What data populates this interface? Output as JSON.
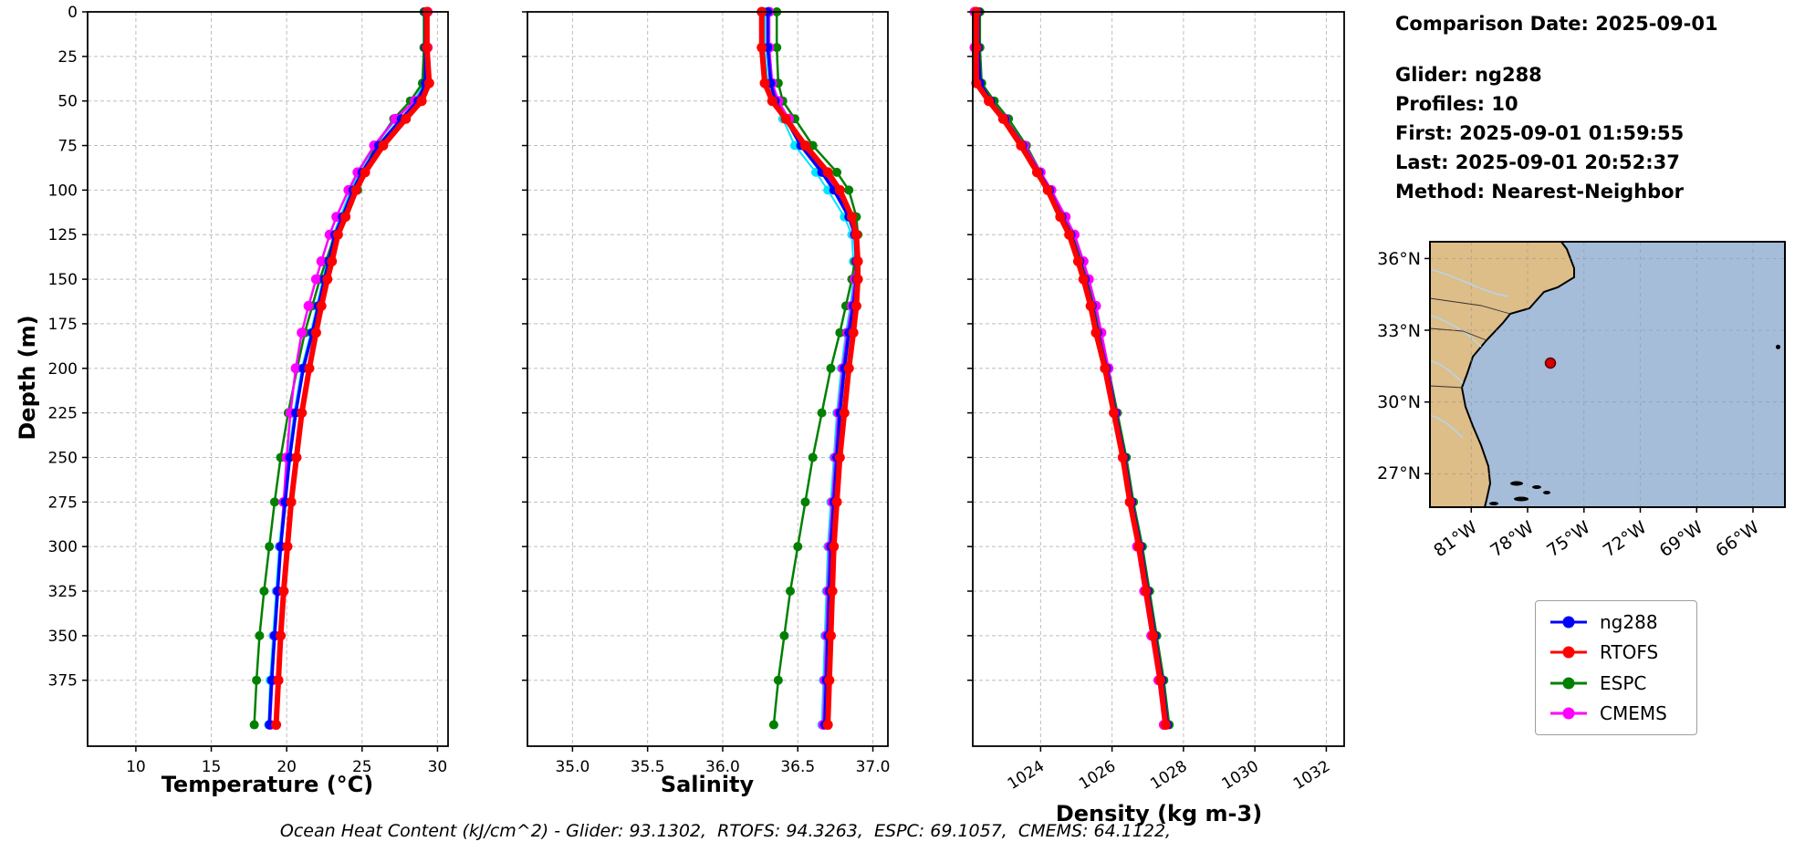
{
  "info_panel": {
    "comparison_date": "Comparison Date: 2025-09-01",
    "glider": "Glider: ng288",
    "profiles": "Profiles: 10",
    "first": "First: 2025-09-01 01:59:55",
    "last": "Last: 2025-09-01 20:52:37",
    "method": "Method: Nearest-Neighbor"
  },
  "footer": {
    "text": "Ocean Heat Content (kJ/cm^2) - Glider: 93.1302,  RTOFS: 94.3263,  ESPC: 69.1057,  CMEMS: 64.1122,"
  },
  "ocean_heat_content": {
    "glider": 93.1302,
    "rtofs": 94.3263,
    "espc": 69.1057,
    "cmems": 64.1122,
    "units": "kJ/cm^2"
  },
  "legend": {
    "entries": [
      {
        "label": "ng288",
        "color": "#0000ff"
      },
      {
        "label": "RTOFS",
        "color": "#ff0000"
      },
      {
        "label": "ESPC",
        "color": "#008000"
      },
      {
        "label": "CMEMS",
        "color": "#ff00ff"
      }
    ]
  },
  "map": {
    "lat_ticks": [
      "36°N",
      "33°N",
      "30°N",
      "27°N"
    ],
    "lon_ticks": [
      "81°W",
      "78°W",
      "75°W",
      "72°W",
      "69°W",
      "66°W"
    ],
    "marker": {
      "color": "#d40000"
    },
    "land_color": "#ddbd88",
    "ocean_color": "#a5bdd9"
  },
  "chart_data": [
    {
      "type": "line",
      "profile": "temperature-depth",
      "xlabel": "Temperature (°C)",
      "ylabel": "Depth (m)",
      "xlim": [
        6.8,
        30.7
      ],
      "ylim": [
        0,
        412
      ],
      "xticks": [
        10,
        15,
        20,
        25,
        30
      ],
      "xtick_labels": [
        "10",
        "15",
        "20",
        "25",
        "30"
      ],
      "yticks": [
        0,
        25,
        50,
        75,
        100,
        125,
        150,
        175,
        200,
        225,
        250,
        275,
        300,
        325,
        350,
        375
      ],
      "show_ytick_labels": true,
      "rotate_xticklabels": false,
      "grid": true,
      "depths": [
        0,
        20,
        40,
        50,
        60,
        75,
        90,
        100,
        115,
        125,
        140,
        150,
        165,
        180,
        200,
        225,
        250,
        275,
        300,
        325,
        350,
        375,
        400
      ],
      "series": [
        {
          "name": "glider-profiles",
          "color": "#00e5ff",
          "lw": 2,
          "ms": 5,
          "values": [
            29.15,
            29.15,
            29.1,
            28.45,
            27.3,
            25.85,
            24.8,
            24.25,
            23.55,
            23.1,
            22.7,
            22.4,
            22.0,
            21.6,
            21.0,
            20.5,
            20.1,
            19.8,
            19.5,
            19.3,
            19.1,
            18.9,
            18.8
          ]
        },
        {
          "name": "ESPC",
          "color": "#008000",
          "lw": 2.5,
          "ms": 5,
          "values": [
            29.1,
            29.1,
            29.0,
            28.2,
            27.1,
            25.9,
            25.1,
            24.7,
            23.8,
            23.2,
            22.6,
            22.2,
            21.7,
            21.2,
            20.7,
            20.1,
            19.6,
            19.2,
            18.85,
            18.5,
            18.2,
            18.0,
            17.85
          ]
        },
        {
          "name": "CMEMS",
          "color": "#ff00ff",
          "lw": 2.5,
          "ms": 5.5,
          "values": [
            29.35,
            29.35,
            29.3,
            28.5,
            27.2,
            25.8,
            24.7,
            24.1,
            23.3,
            22.85,
            22.3,
            21.95,
            21.45,
            21.0,
            20.6,
            20.25,
            20.0,
            19.8,
            19.6,
            19.4,
            19.2,
            19.05,
            18.9
          ]
        },
        {
          "name": "ng288",
          "color": "#0000ff",
          "lw": 3.5,
          "ms": 5,
          "values": [
            29.2,
            29.2,
            29.2,
            28.7,
            27.6,
            26.1,
            25.0,
            24.4,
            23.7,
            23.2,
            22.8,
            22.5,
            22.1,
            21.7,
            21.1,
            20.6,
            20.2,
            19.9,
            19.6,
            19.4,
            19.2,
            19.0,
            18.85
          ]
        },
        {
          "name": "RTOFS",
          "color": "#ff0000",
          "lw": 6,
          "ms": 5.5,
          "values": [
            29.3,
            29.3,
            29.45,
            28.95,
            27.9,
            26.4,
            25.2,
            24.6,
            23.9,
            23.4,
            23.0,
            22.7,
            22.3,
            21.95,
            21.5,
            21.0,
            20.65,
            20.3,
            20.05,
            19.8,
            19.6,
            19.45,
            19.3
          ]
        }
      ]
    },
    {
      "type": "line",
      "profile": "salinity-depth",
      "xlabel": "Salinity",
      "ylabel": "Depth (m)",
      "xlim": [
        34.7,
        37.1
      ],
      "ylim": [
        0,
        412
      ],
      "xticks": [
        35.0,
        35.5,
        36.0,
        36.5,
        37.0
      ],
      "xtick_labels": [
        "35.0",
        "35.5",
        "36.0",
        "36.5",
        "37.0"
      ],
      "yticks": [
        0,
        25,
        50,
        75,
        100,
        125,
        150,
        175,
        200,
        225,
        250,
        275,
        300,
        325,
        350,
        375
      ],
      "show_ytick_labels": false,
      "rotate_xticklabels": false,
      "grid": true,
      "depths": [
        0,
        20,
        40,
        50,
        60,
        75,
        90,
        100,
        115,
        125,
        140,
        150,
        165,
        180,
        200,
        225,
        250,
        275,
        300,
        325,
        350,
        375,
        400
      ],
      "series": [
        {
          "name": "glider-profiles",
          "color": "#00e5ff",
          "lw": 2,
          "ms": 5,
          "values": [
            36.28,
            36.28,
            36.3,
            36.33,
            36.4,
            36.48,
            36.62,
            36.7,
            36.81,
            36.86,
            36.87,
            36.87,
            36.85,
            36.82,
            36.79,
            36.76,
            36.74,
            36.72,
            36.7,
            36.69,
            36.68,
            36.67,
            36.66
          ]
        },
        {
          "name": "ESPC",
          "color": "#008000",
          "lw": 2.5,
          "ms": 5,
          "values": [
            36.36,
            36.36,
            36.37,
            36.4,
            36.48,
            36.6,
            36.76,
            36.84,
            36.89,
            36.9,
            36.88,
            36.86,
            36.82,
            36.78,
            36.72,
            36.66,
            36.6,
            36.55,
            36.5,
            36.45,
            36.41,
            36.37,
            36.34
          ]
        },
        {
          "name": "CMEMS",
          "color": "#ff00ff",
          "lw": 2.5,
          "ms": 5.5,
          "values": [
            36.31,
            36.31,
            36.33,
            36.37,
            36.44,
            36.55,
            36.68,
            36.76,
            36.85,
            36.88,
            36.89,
            36.88,
            36.86,
            36.83,
            36.8,
            36.77,
            36.75,
            36.73,
            36.71,
            36.7,
            36.69,
            36.68,
            36.67
          ]
        },
        {
          "name": "ng288",
          "color": "#0000ff",
          "lw": 3.5,
          "ms": 5,
          "values": [
            36.3,
            36.3,
            36.32,
            36.35,
            36.42,
            36.52,
            36.66,
            36.74,
            36.84,
            36.88,
            36.89,
            36.89,
            36.87,
            36.84,
            36.81,
            36.78,
            36.76,
            36.74,
            36.72,
            36.71,
            36.7,
            36.69,
            36.68
          ]
        },
        {
          "name": "RTOFS",
          "color": "#ff0000",
          "lw": 6,
          "ms": 5.5,
          "values": [
            36.26,
            36.26,
            36.28,
            36.33,
            36.42,
            36.55,
            36.7,
            36.78,
            36.86,
            36.89,
            36.9,
            36.9,
            36.89,
            36.87,
            36.84,
            36.81,
            36.78,
            36.76,
            36.74,
            36.73,
            36.72,
            36.71,
            36.7
          ]
        }
      ]
    },
    {
      "type": "line",
      "profile": "density-depth",
      "xlabel": "Density (kg m-3)",
      "ylabel": "Depth (m)",
      "xlim": [
        1022.1,
        1032.5
      ],
      "ylim": [
        0,
        412
      ],
      "xticks": [
        1024,
        1026,
        1028,
        1030,
        1032
      ],
      "xtick_labels": [
        "1024",
        "1026",
        "1028",
        "1030",
        "1032"
      ],
      "yticks": [
        0,
        25,
        50,
        75,
        100,
        125,
        150,
        175,
        200,
        225,
        250,
        275,
        300,
        325,
        350,
        375
      ],
      "show_ytick_labels": false,
      "rotate_xticklabels": true,
      "grid": true,
      "depths": [
        0,
        20,
        40,
        50,
        60,
        75,
        90,
        100,
        115,
        125,
        140,
        150,
        165,
        180,
        200,
        225,
        250,
        275,
        300,
        325,
        350,
        375,
        400
      ],
      "series": [
        {
          "name": "glider-profiles",
          "color": "#00e5ff",
          "lw": 2,
          "ms": 5,
          "values": [
            1022.2,
            1022.2,
            1022.25,
            1022.55,
            1022.95,
            1023.45,
            1023.9,
            1024.2,
            1024.55,
            1024.8,
            1025.05,
            1025.2,
            1025.4,
            1025.55,
            1025.8,
            1026.05,
            1026.3,
            1026.5,
            1026.75,
            1026.95,
            1027.15,
            1027.35,
            1027.5
          ]
        },
        {
          "name": "ESPC",
          "color": "#008000",
          "lw": 2.5,
          "ms": 5,
          "values": [
            1022.3,
            1022.3,
            1022.35,
            1022.7,
            1023.1,
            1023.6,
            1024.0,
            1024.3,
            1024.65,
            1024.9,
            1025.15,
            1025.3,
            1025.5,
            1025.65,
            1025.9,
            1026.15,
            1026.4,
            1026.6,
            1026.85,
            1027.05,
            1027.25,
            1027.45,
            1027.6
          ]
        },
        {
          "name": "CMEMS",
          "color": "#ff00ff",
          "lw": 2.5,
          "ms": 5.5,
          "values": [
            1022.15,
            1022.15,
            1022.2,
            1022.55,
            1023.0,
            1023.55,
            1024.0,
            1024.3,
            1024.7,
            1024.95,
            1025.2,
            1025.35,
            1025.55,
            1025.7,
            1025.9,
            1026.1,
            1026.3,
            1026.5,
            1026.7,
            1026.9,
            1027.1,
            1027.3,
            1027.45
          ]
        },
        {
          "name": "ng288",
          "color": "#0000ff",
          "lw": 3.5,
          "ms": 5,
          "values": [
            1022.25,
            1022.25,
            1022.3,
            1022.6,
            1023.0,
            1023.5,
            1023.95,
            1024.25,
            1024.6,
            1024.85,
            1025.1,
            1025.25,
            1025.45,
            1025.6,
            1025.85,
            1026.1,
            1026.35,
            1026.55,
            1026.8,
            1027.0,
            1027.2,
            1027.4,
            1027.55
          ]
        },
        {
          "name": "RTOFS",
          "color": "#ff0000",
          "lw": 6,
          "ms": 5.5,
          "values": [
            1022.2,
            1022.2,
            1022.2,
            1022.55,
            1022.95,
            1023.45,
            1023.9,
            1024.2,
            1024.55,
            1024.8,
            1025.05,
            1025.2,
            1025.4,
            1025.55,
            1025.8,
            1026.05,
            1026.3,
            1026.5,
            1026.75,
            1026.95,
            1027.15,
            1027.35,
            1027.5
          ]
        }
      ]
    }
  ]
}
